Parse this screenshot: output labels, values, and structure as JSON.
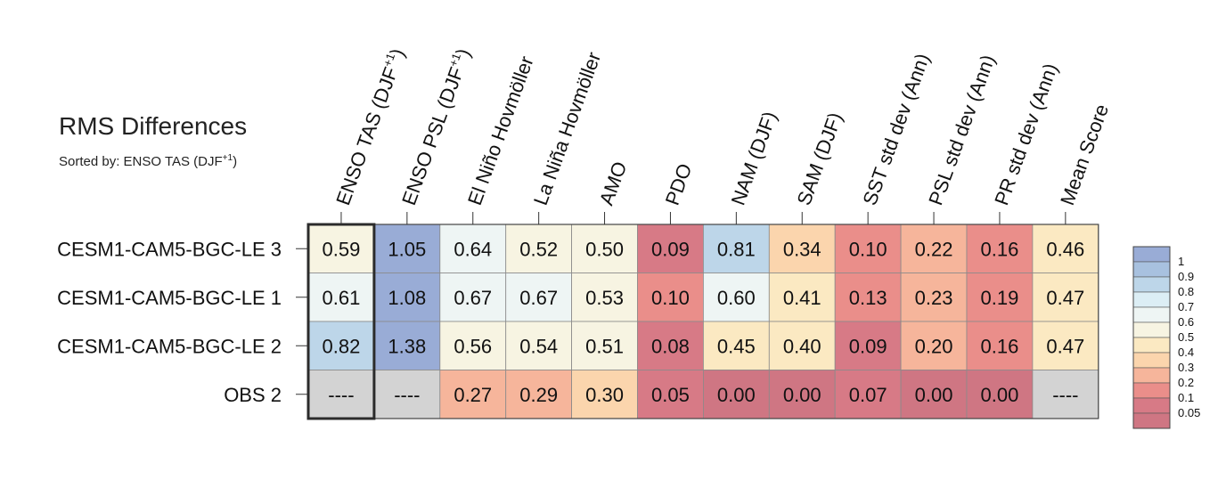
{
  "chart_data": {
    "type": "heatmap",
    "title": "RMS Differences",
    "subtitle_prefix": "Sorted by: ENSO TAS (DJF",
    "subtitle_sup": "+1",
    "subtitle_suffix": ")",
    "columns": [
      {
        "label": "ENSO TAS (DJF",
        "sup": "+1",
        "suffix": ")"
      },
      {
        "label": "ENSO PSL (DJF",
        "sup": "+1",
        "suffix": ")"
      },
      {
        "label": "El Niño Hovmöller"
      },
      {
        "label": "La Niña Hovmöller"
      },
      {
        "label": "AMO"
      },
      {
        "label": "PDO"
      },
      {
        "label": "NAM (DJF)"
      },
      {
        "label": "SAM (DJF)"
      },
      {
        "label": "SST std dev (Ann)"
      },
      {
        "label": "PSL std dev (Ann)"
      },
      {
        "label": "PR std dev (Ann)"
      },
      {
        "label": "Mean Score"
      }
    ],
    "rows": [
      {
        "label": "CESM1-CAM5-BGC-LE 3",
        "cells": [
          "0.59",
          "1.05",
          "0.64",
          "0.52",
          "0.50",
          "0.09",
          "0.81",
          "0.34",
          "0.10",
          "0.22",
          "0.16",
          "0.46"
        ]
      },
      {
        "label": "CESM1-CAM5-BGC-LE 1",
        "cells": [
          "0.61",
          "1.08",
          "0.67",
          "0.67",
          "0.53",
          "0.10",
          "0.60",
          "0.41",
          "0.13",
          "0.23",
          "0.19",
          "0.47"
        ]
      },
      {
        "label": "CESM1-CAM5-BGC-LE 2",
        "cells": [
          "0.82",
          "1.38",
          "0.56",
          "0.54",
          "0.51",
          "0.08",
          "0.45",
          "0.40",
          "0.09",
          "0.20",
          "0.16",
          "0.47"
        ]
      },
      {
        "label": "OBS 2",
        "cells": [
          "----",
          "----",
          "0.27",
          "0.29",
          "0.30",
          "0.05",
          "0.00",
          "0.00",
          "0.07",
          "0.00",
          "0.00",
          "----"
        ]
      }
    ],
    "missing_value": "----",
    "missing_color": "#d3d3d3",
    "highlighted_column": 0,
    "colorbar": {
      "levels": [
        "1",
        "0.9",
        "0.8",
        "0.7",
        "0.6",
        "0.5",
        "0.4",
        "0.3",
        "0.2",
        "0.1",
        "0.05"
      ],
      "colors": [
        "#99acd6",
        "#a8c1df",
        "#bdd6e9",
        "#dceef5",
        "#eef5f4",
        "#f7f4e2",
        "#fbe9c2",
        "#fbd5ad",
        "#f6b59b",
        "#ea8e8a",
        "#d77a86",
        "#cf7683"
      ]
    }
  }
}
